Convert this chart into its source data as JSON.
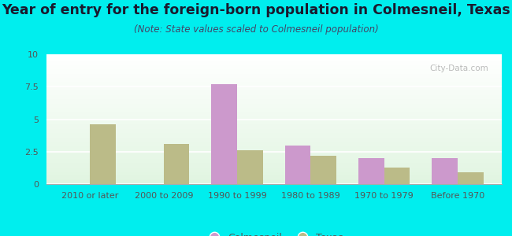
{
  "title": "Year of entry for the foreign-born population in Colmesneil, Texas",
  "subtitle": "(Note: State values scaled to Colmesneil population)",
  "categories": [
    "2010 or later",
    "2000 to 2009",
    "1990 to 1999",
    "1980 to 1989",
    "1970 to 1979",
    "Before 1970"
  ],
  "colmesneil_values": [
    0,
    0,
    7.7,
    3.0,
    2.0,
    2.0
  ],
  "texas_values": [
    4.6,
    3.1,
    2.6,
    2.2,
    1.3,
    0.9
  ],
  "colmesneil_color": "#cc99cc",
  "texas_color": "#bbbb88",
  "background_color": "#00eeee",
  "ylim": [
    0,
    10
  ],
  "yticks": [
    0,
    2.5,
    5,
    7.5,
    10
  ],
  "bar_width": 0.35,
  "legend_colmesneil": "Colmesneil",
  "legend_texas": "Texas",
  "title_fontsize": 12.5,
  "subtitle_fontsize": 8.5,
  "tick_fontsize": 8,
  "watermark": "City-Data.com"
}
